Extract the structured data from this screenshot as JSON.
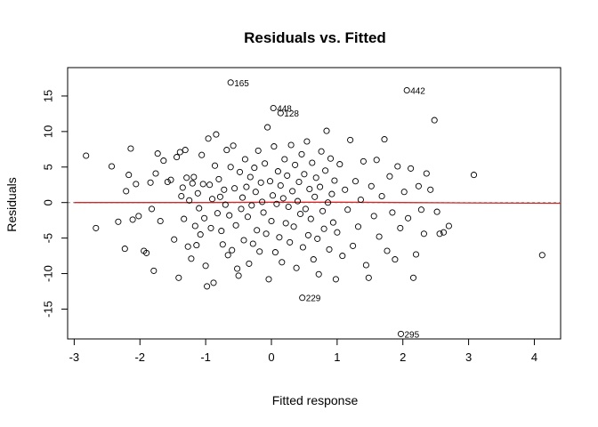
{
  "chart_data": {
    "type": "scatter",
    "title": "Residuals vs. Fitted",
    "xlabel": "Fitted response",
    "ylabel": "Residuals",
    "xlim": [
      -3.1,
      4.4
    ],
    "ylim": [
      -19.2,
      19.0
    ],
    "x_ticks": [
      -3,
      -2,
      -1,
      0,
      1,
      2,
      3,
      4
    ],
    "y_ticks": [
      -15,
      -10,
      -5,
      0,
      5,
      10,
      15
    ],
    "grid": false,
    "legend": "none",
    "reference_line": {
      "y": 0,
      "style": "dashed",
      "color": "#888888"
    },
    "smooth_line": {
      "color": "#d62728",
      "x": [
        -3.0,
        -2.0,
        -1.0,
        0.0,
        1.0,
        2.0,
        3.0,
        4.4
      ],
      "y": [
        0.0,
        0.0,
        0.0,
        0.05,
        0.05,
        0.0,
        -0.05,
        -0.1
      ]
    },
    "labeled_points": [
      {
        "label": "165",
        "x": -0.62,
        "y": 16.9
      },
      {
        "label": "442",
        "x": 2.06,
        "y": 15.8
      },
      {
        "label": "448",
        "x": 0.03,
        "y": 13.3
      },
      {
        "label": "128",
        "x": 0.14,
        "y": 12.6
      },
      {
        "label": "229",
        "x": 0.47,
        "y": -13.4
      },
      {
        "label": "295",
        "x": 1.97,
        "y": -18.5
      }
    ],
    "points": [
      [
        -2.82,
        6.6
      ],
      [
        -2.67,
        -3.6
      ],
      [
        -2.43,
        5.1
      ],
      [
        -2.33,
        -2.7
      ],
      [
        -2.23,
        -6.5
      ],
      [
        -2.21,
        1.6
      ],
      [
        -2.17,
        3.9
      ],
      [
        -2.14,
        7.6
      ],
      [
        -2.11,
        -2.4
      ],
      [
        -2.06,
        2.6
      ],
      [
        -2.02,
        -1.9
      ],
      [
        -1.94,
        -6.8
      ],
      [
        -1.9,
        -7.1
      ],
      [
        -1.84,
        2.8
      ],
      [
        -1.82,
        -0.9
      ],
      [
        -1.79,
        -9.6
      ],
      [
        -1.76,
        4.1
      ],
      [
        -1.73,
        6.9
      ],
      [
        -1.69,
        -2.6
      ],
      [
        -1.64,
        5.9
      ],
      [
        -1.58,
        2.9
      ],
      [
        -1.53,
        3.2
      ],
      [
        -1.48,
        -5.2
      ],
      [
        -1.44,
        6.4
      ],
      [
        -1.41,
        -10.6
      ],
      [
        -1.39,
        7.1
      ],
      [
        -1.37,
        0.9
      ],
      [
        -1.35,
        2.1
      ],
      [
        -1.33,
        -2.3
      ],
      [
        -1.31,
        7.4
      ],
      [
        -1.29,
        3.5
      ],
      [
        -1.27,
        -6.2
      ],
      [
        -1.25,
        0.3
      ],
      [
        -1.22,
        -7.9
      ],
      [
        -1.2,
        2.7
      ],
      [
        -1.18,
        3.6
      ],
      [
        -1.16,
        -3.3
      ],
      [
        -1.14,
        -6.0
      ],
      [
        -1.12,
        1.3
      ],
      [
        -1.1,
        -0.8
      ],
      [
        -1.08,
        -4.5
      ],
      [
        -1.06,
        6.7
      ],
      [
        -1.04,
        2.6
      ],
      [
        -1.02,
        -2.2
      ],
      [
        -1.0,
        -8.9
      ],
      [
        -0.98,
        -11.8
      ],
      [
        -0.96,
        9.0
      ],
      [
        -0.94,
        2.5
      ],
      [
        -0.92,
        -3.6
      ],
      [
        -0.9,
        0.5
      ],
      [
        -0.88,
        -11.3
      ],
      [
        -0.86,
        5.2
      ],
      [
        -0.84,
        9.6
      ],
      [
        -0.82,
        -1.5
      ],
      [
        -0.8,
        3.3
      ],
      [
        -0.78,
        0.8
      ],
      [
        -0.76,
        -4.0
      ],
      [
        -0.74,
        -5.9
      ],
      [
        -0.72,
        1.8
      ],
      [
        -0.7,
        -0.3
      ],
      [
        -0.68,
        7.4
      ],
      [
        -0.66,
        -7.4
      ],
      [
        -0.64,
        -1.8
      ],
      [
        -0.62,
        5.0
      ],
      [
        -0.6,
        -6.7
      ],
      [
        -0.58,
        8.0
      ],
      [
        -0.56,
        2.0
      ],
      [
        -0.54,
        -3.2
      ],
      [
        -0.52,
        -9.3
      ],
      [
        -0.5,
        -10.3
      ],
      [
        -0.48,
        4.3
      ],
      [
        -0.46,
        -0.9
      ],
      [
        -0.44,
        0.7
      ],
      [
        -0.42,
        -5.3
      ],
      [
        -0.4,
        6.1
      ],
      [
        -0.38,
        2.2
      ],
      [
        -0.36,
        -2.0
      ],
      [
        -0.34,
        -8.6
      ],
      [
        -0.32,
        3.6
      ],
      [
        -0.3,
        -0.4
      ],
      [
        -0.28,
        -5.8
      ],
      [
        -0.26,
        4.9
      ],
      [
        -0.24,
        1.5
      ],
      [
        -0.22,
        -3.9
      ],
      [
        -0.2,
        7.3
      ],
      [
        -0.18,
        -6.9
      ],
      [
        -0.16,
        2.8
      ],
      [
        -0.14,
        0.1
      ],
      [
        -0.12,
        -1.4
      ],
      [
        -0.1,
        5.5
      ],
      [
        -0.08,
        -4.4
      ],
      [
        -0.06,
        10.6
      ],
      [
        -0.04,
        -10.8
      ],
      [
        -0.02,
        3.0
      ],
      [
        0.0,
        -2.6
      ],
      [
        0.02,
        1.0
      ],
      [
        0.04,
        7.9
      ],
      [
        0.06,
        -7.0
      ],
      [
        0.08,
        -0.2
      ],
      [
        0.1,
        4.4
      ],
      [
        0.12,
        -4.9
      ],
      [
        0.14,
        2.4
      ],
      [
        0.16,
        -8.4
      ],
      [
        0.18,
        0.6
      ],
      [
        0.2,
        6.1
      ],
      [
        0.22,
        -2.9
      ],
      [
        0.24,
        3.8
      ],
      [
        0.26,
        -0.6
      ],
      [
        0.28,
        -5.6
      ],
      [
        0.3,
        8.1
      ],
      [
        0.32,
        1.6
      ],
      [
        0.34,
        -3.4
      ],
      [
        0.36,
        5.3
      ],
      [
        0.38,
        -9.2
      ],
      [
        0.4,
        0.2
      ],
      [
        0.42,
        2.9
      ],
      [
        0.44,
        -1.6
      ],
      [
        0.46,
        6.8
      ],
      [
        0.48,
        -6.3
      ],
      [
        0.5,
        4.0
      ],
      [
        0.52,
        -0.9
      ],
      [
        0.54,
        8.6
      ],
      [
        0.56,
        -4.6
      ],
      [
        0.58,
        1.9
      ],
      [
        0.6,
        -2.3
      ],
      [
        0.62,
        5.6
      ],
      [
        0.64,
        -8.0
      ],
      [
        0.66,
        0.8
      ],
      [
        0.68,
        3.5
      ],
      [
        0.7,
        -5.1
      ],
      [
        0.72,
        -10.1
      ],
      [
        0.74,
        2.2
      ],
      [
        0.76,
        7.2
      ],
      [
        0.78,
        -1.2
      ],
      [
        0.8,
        -3.7
      ],
      [
        0.82,
        4.5
      ],
      [
        0.84,
        10.1
      ],
      [
        0.86,
        0.0
      ],
      [
        0.88,
        -6.6
      ],
      [
        0.9,
        6.2
      ],
      [
        0.92,
        1.2
      ],
      [
        0.94,
        -2.8
      ],
      [
        0.96,
        3.1
      ],
      [
        0.98,
        -10.8
      ],
      [
        1.0,
        -4.2
      ],
      [
        1.04,
        5.4
      ],
      [
        1.08,
        -7.5
      ],
      [
        1.12,
        1.8
      ],
      [
        1.16,
        -1.0
      ],
      [
        1.2,
        8.8
      ],
      [
        1.24,
        -6.1
      ],
      [
        1.28,
        3.0
      ],
      [
        1.32,
        -3.4
      ],
      [
        1.36,
        0.4
      ],
      [
        1.4,
        5.8
      ],
      [
        1.44,
        -8.8
      ],
      [
        1.48,
        -10.6
      ],
      [
        1.52,
        2.3
      ],
      [
        1.56,
        -1.9
      ],
      [
        1.6,
        6.0
      ],
      [
        1.64,
        -4.8
      ],
      [
        1.68,
        0.9
      ],
      [
        1.72,
        8.9
      ],
      [
        1.76,
        -6.8
      ],
      [
        1.8,
        3.7
      ],
      [
        1.84,
        -1.4
      ],
      [
        1.88,
        -8.0
      ],
      [
        1.92,
        5.1
      ],
      [
        1.96,
        -3.6
      ],
      [
        2.02,
        1.5
      ],
      [
        2.08,
        -2.2
      ],
      [
        2.12,
        4.8
      ],
      [
        2.16,
        -10.6
      ],
      [
        2.2,
        -7.3
      ],
      [
        2.24,
        2.3
      ],
      [
        2.28,
        -1.0
      ],
      [
        2.32,
        -4.4
      ],
      [
        2.36,
        4.1
      ],
      [
        2.42,
        1.8
      ],
      [
        2.48,
        11.6
      ],
      [
        2.52,
        -1.3
      ],
      [
        2.56,
        -4.4
      ],
      [
        2.62,
        -4.2
      ],
      [
        2.7,
        -3.3
      ],
      [
        3.08,
        3.9
      ],
      [
        4.12,
        -7.4
      ]
    ]
  }
}
